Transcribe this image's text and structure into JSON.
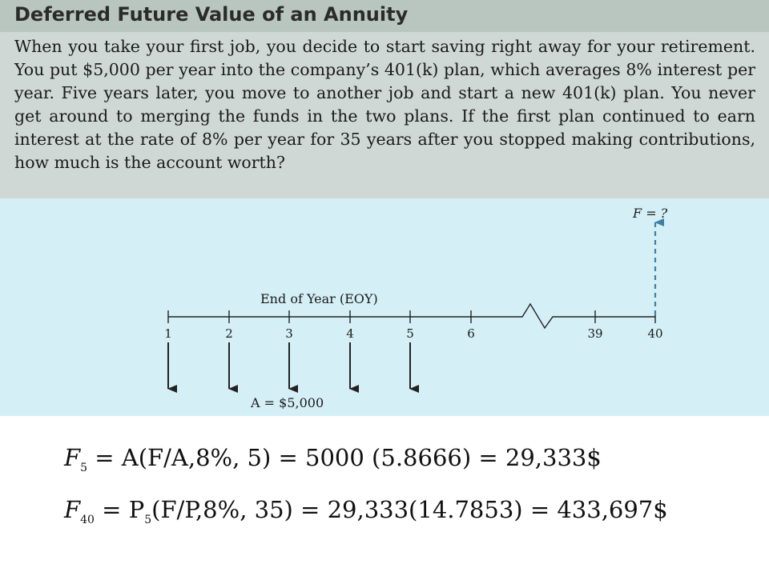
{
  "problem": {
    "title": "Deferred Future Value of an Annuity",
    "text": "When you take your first job, you decide to start saving right away for your retirement. You put $5,000 per year into the company’s 401(k) plan, which averages 8% interest per year. Five years later, you move to another job and start a new 401(k) plan. You never get around to merging the funds in the two plans. If the first plan continued to earn interest at the rate of 8% per year for 35 years after you stopped making contributions, how much is the account worth?"
  },
  "diagram": {
    "axis_title": "End of Year (EOY)",
    "years": [
      "1",
      "2",
      "3",
      "4",
      "5",
      "6",
      "39",
      "40"
    ],
    "deposit_years": [
      "1",
      "2",
      "3",
      "4",
      "5"
    ],
    "deposit_label": "A = $5,000",
    "future_label": "F = ?",
    "future_year": "40",
    "colors": {
      "deposit_arrow": "#222222",
      "future_arrow": "#3f7fa6"
    }
  },
  "solution": {
    "eq1": {
      "lhs": "F",
      "sub": "5",
      "rhs": " = A(F/A,8%, 5) = 5000 (5.8666) = 29,333$"
    },
    "eq2": {
      "lhs": "F",
      "sub": "40",
      "mid": " = P",
      "mid_sub": "5",
      "rhs": "(F/P,8%, 35) = 29,333(14.7853) = 433,697$"
    }
  }
}
